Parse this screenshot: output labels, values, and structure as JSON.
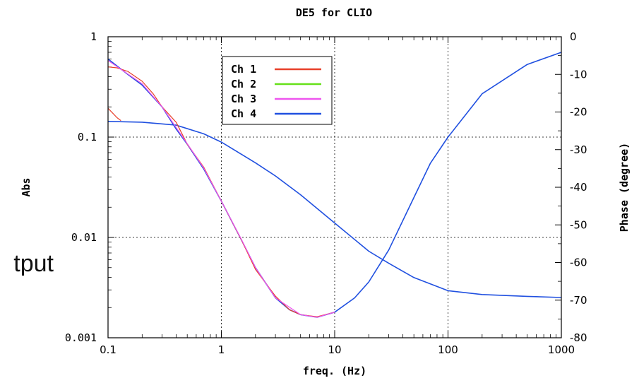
{
  "side_text": "tput",
  "chart_data": {
    "type": "line",
    "title": "DE5 for CLIO",
    "xlabel": "freq. (Hz)",
    "ylabel_left": "Abs",
    "ylabel_right": "Phase (degree)",
    "x_scale": "log",
    "y_left_scale": "log",
    "xlim": [
      0.1,
      1000
    ],
    "ylim_left": [
      0.001,
      1
    ],
    "ylim_right": [
      -80,
      0
    ],
    "x_ticks": [
      "0.1",
      "1",
      "10",
      "100",
      "1000"
    ],
    "y_left_ticks": [
      "0.001",
      "0.01",
      "0.1",
      "1"
    ],
    "y_right_ticks": [
      "0",
      "-10",
      "-20",
      "-30",
      "-40",
      "-50",
      "-60",
      "-70",
      "-80"
    ],
    "grid": "dotted, major decades only",
    "legend": {
      "placement": "top-center",
      "entries": [
        {
          "name": "Ch 1",
          "color": "#e8402a"
        },
        {
          "name": "Ch 2",
          "color": "#66e01a"
        },
        {
          "name": "Ch 3",
          "color": "#ee55ee"
        },
        {
          "name": "Ch 4",
          "color": "#2050e0"
        }
      ]
    },
    "series": [
      {
        "name": "Ch 4",
        "quantity": "Abs",
        "axis": "left",
        "color": "#2050e0",
        "x": [
          0.1,
          0.15,
          0.2,
          0.3,
          0.4,
          0.5,
          0.7,
          1,
          1.5,
          2,
          3,
          4,
          5,
          7,
          10,
          15,
          20,
          30,
          50,
          70,
          100,
          200,
          500,
          1000
        ],
        "y": [
          0.6,
          0.42,
          0.33,
          0.2,
          0.12,
          0.085,
          0.048,
          0.023,
          0.0095,
          0.005,
          0.0025,
          0.0019,
          0.0017,
          0.0016,
          0.0018,
          0.0025,
          0.0036,
          0.0075,
          0.025,
          0.055,
          0.1,
          0.27,
          0.53,
          0.7
        ]
      },
      {
        "name": "Ch 4",
        "quantity": "Phase",
        "axis": "right",
        "color": "#2050e0",
        "x": [
          0.1,
          0.2,
          0.4,
          0.7,
          1,
          2,
          3,
          5,
          10,
          20,
          30,
          50,
          100,
          200,
          500,
          1000
        ],
        "y": [
          -22.5,
          -22.7,
          -23.5,
          -25.8,
          -28,
          -33.5,
          -37,
          -42,
          -49.5,
          -57,
          -60.2,
          -64,
          -67.5,
          -68.5,
          -69,
          -69.3
        ]
      },
      {
        "name": "Ch 1",
        "quantity": "Abs",
        "axis": "left",
        "color": "#e8402a",
        "x": [
          0.1,
          0.12,
          0.15,
          0.2,
          0.25,
          0.3,
          0.4,
          0.5,
          0.7,
          1,
          1.5,
          2,
          3,
          4,
          5,
          7,
          10
        ],
        "y": [
          0.5,
          0.49,
          0.45,
          0.36,
          0.27,
          0.2,
          0.14,
          0.085,
          0.05,
          0.023,
          0.0095,
          0.0048,
          0.0026,
          0.0019,
          0.0017,
          0.00162,
          0.0018
        ]
      },
      {
        "name": "Ch 1",
        "quantity": "Phase",
        "axis": "right",
        "color": "#e8402a",
        "x": [
          0.1,
          0.11,
          0.12,
          0.13
        ],
        "y": [
          -19,
          -20.3,
          -21.5,
          -22.3
        ]
      },
      {
        "name": "Ch 3",
        "quantity": "Abs",
        "axis": "left",
        "color": "#ee55ee",
        "x": [
          0.1,
          0.2,
          0.3,
          0.5,
          0.7,
          1,
          1.5,
          2,
          3,
          5,
          7,
          10
        ],
        "y": [
          0.58,
          0.34,
          0.2,
          0.086,
          0.049,
          0.023,
          0.0096,
          0.005,
          0.0025,
          0.0017,
          0.0016,
          0.0018
        ]
      }
    ]
  }
}
